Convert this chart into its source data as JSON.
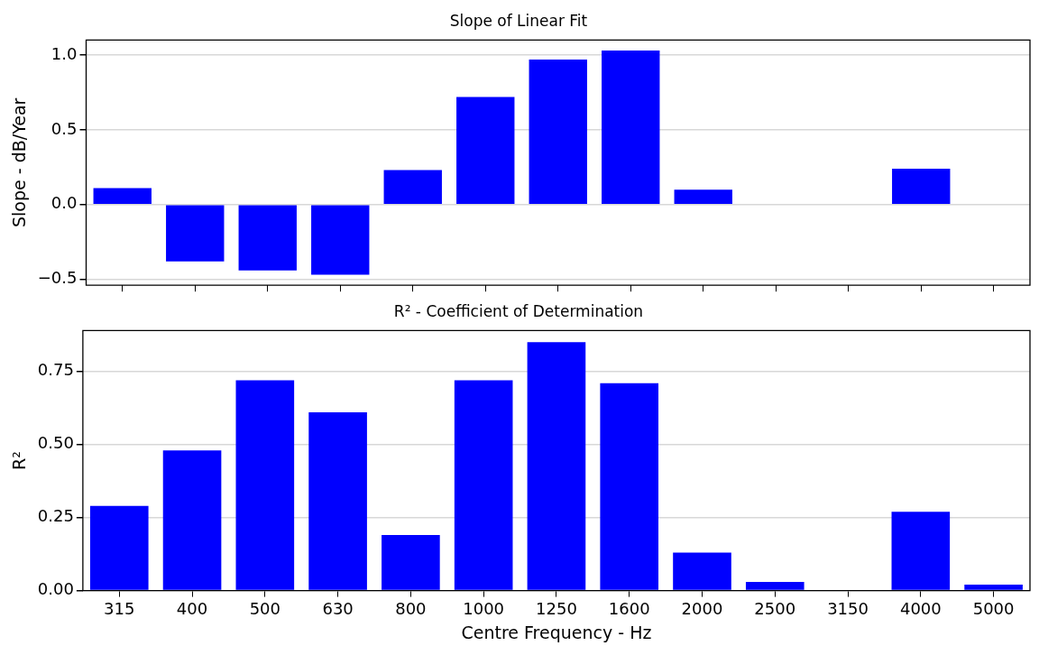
{
  "chart_data": [
    {
      "type": "bar",
      "title": "Slope of Linear Fit",
      "ylabel": "Slope - dB/Year",
      "categories": [
        "315",
        "400",
        "500",
        "630",
        "800",
        "1000",
        "1250",
        "1600",
        "2000",
        "2500",
        "3150",
        "4000",
        "5000"
      ],
      "values": [
        0.11,
        -0.38,
        -0.44,
        -0.47,
        0.23,
        0.72,
        0.97,
        1.03,
        0.1,
        null,
        null,
        0.24,
        null
      ],
      "color": "#0000ff",
      "ylim": [
        -0.54,
        1.1
      ],
      "yticks": [
        {
          "value": -0.5,
          "label": "−0.5"
        },
        {
          "value": 0,
          "label": "0.0"
        },
        {
          "value": 0.5,
          "label": "0.5"
        },
        {
          "value": 1,
          "label": "1.0"
        }
      ],
      "grid": "y",
      "tick_labels": "y"
    },
    {
      "type": "bar",
      "title": "R² - Coefficient of Determination",
      "ylabel": "R²",
      "xlabel": "Centre Frequency - Hz",
      "categories": [
        "315",
        "400",
        "500",
        "630",
        "800",
        "1000",
        "1250",
        "1600",
        "2000",
        "2500",
        "3150",
        "4000",
        "5000"
      ],
      "values": [
        0.29,
        0.48,
        0.72,
        0.61,
        0.19,
        0.72,
        0.85,
        0.71,
        0.13,
        0.03,
        null,
        0.27,
        0.02
      ],
      "color": "#0000ff",
      "ylim": [
        0,
        0.89
      ],
      "yticks": [
        {
          "value": 0,
          "label": "0.00"
        },
        {
          "value": 0.25,
          "label": "0.25"
        },
        {
          "value": 0.5,
          "label": "0.50"
        },
        {
          "value": 0.75,
          "label": "0.75"
        }
      ],
      "grid": "y"
    }
  ]
}
